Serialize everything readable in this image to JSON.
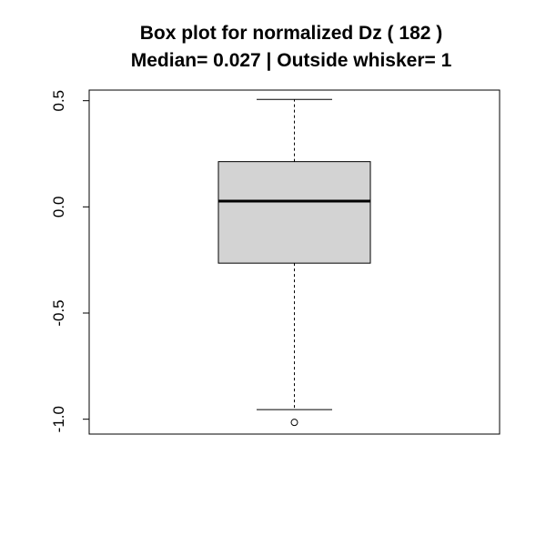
{
  "chart_data": {
    "type": "box",
    "title": "Box plot for normalized Dz ( 182 )",
    "subtitle": "Median= 0.027 | Outside whisker= 1",
    "ylim": [
      -1.07,
      0.55
    ],
    "yticks": [
      -1.0,
      -0.5,
      0.0,
      0.5
    ],
    "ytick_labels": [
      "-1.0",
      "-0.5",
      "0.0",
      "0.5"
    ],
    "box": {
      "whisker_low": -0.955,
      "q1": -0.265,
      "median": 0.027,
      "q3": 0.213,
      "whisker_high": 0.506
    },
    "outliers": [
      -1.015
    ],
    "colors": {
      "box_fill": "#d3d3d3",
      "stroke": "#000000"
    }
  }
}
